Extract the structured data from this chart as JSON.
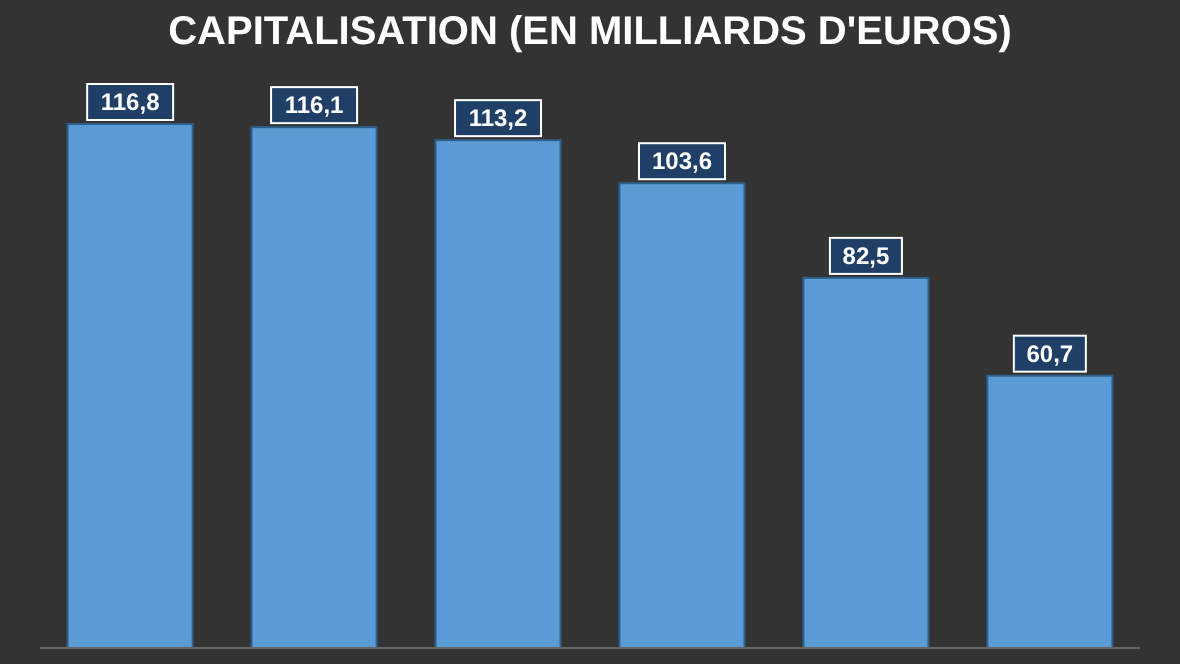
{
  "chart_data": {
    "type": "bar",
    "title": "CAPITALISATION (EN MILLIARDS D'EUROS)",
    "categories": [
      null,
      null,
      null,
      null,
      null,
      null
    ],
    "values": [
      116.8,
      116.1,
      113.2,
      103.6,
      82.5,
      60.7
    ],
    "value_labels": [
      "116,8",
      "116,1",
      "113,2",
      "103,6",
      "82,5",
      "60,7"
    ],
    "color": "#5b9bd5"
  }
}
